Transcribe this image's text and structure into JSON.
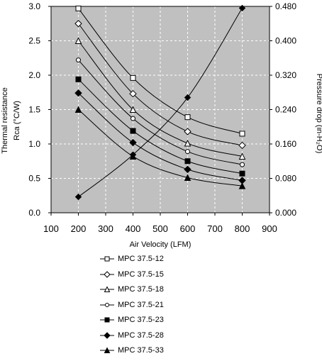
{
  "chart_data": {
    "type": "line",
    "xlabel": "Air Velocity (LFM)",
    "ylabel_left_line1": "Thermal resistance",
    "ylabel_left_line2": "Rca (°C/W)",
    "ylabel_right": "Pressure drop (in-H₂O)",
    "xlim": [
      100,
      900
    ],
    "x_ticks": [
      100,
      200,
      300,
      400,
      500,
      600,
      700,
      800,
      900
    ],
    "ylim_left": [
      0.0,
      3.0
    ],
    "y_ticks_left": [
      "0.0",
      "0.5",
      "1.0",
      "1.5",
      "2.0",
      "2.5",
      "3.0"
    ],
    "ylim_right": [
      0.0,
      0.48
    ],
    "y_ticks_right": [
      "0.000",
      "0.080",
      "0.160",
      "0.240",
      "0.320",
      "0.400",
      "0.480"
    ],
    "grid": true,
    "background_color": "#c0c0c0",
    "line_color": "#000000",
    "x": [
      200,
      400,
      600,
      800
    ],
    "series": [
      {
        "name": "MPC 37.5-12",
        "marker": "square-open",
        "values": [
          2.97,
          1.96,
          1.39,
          1.15
        ]
      },
      {
        "name": "MPC 37.5-15",
        "marker": "diamond-open",
        "values": [
          2.75,
          1.73,
          1.18,
          0.98
        ]
      },
      {
        "name": "MPC 37.5-18",
        "marker": "triangle-open",
        "values": [
          2.5,
          1.5,
          1.01,
          0.82
        ]
      },
      {
        "name": "MPC 37.5-21",
        "marker": "circle-open",
        "values": [
          2.22,
          1.37,
          0.89,
          0.7
        ]
      },
      {
        "name": "MPC 37.5-23",
        "marker": "square-filled",
        "values": [
          1.94,
          1.19,
          0.75,
          0.57
        ]
      },
      {
        "name": "MPC 37.5-28",
        "marker": "diamond-filled",
        "values": [
          1.74,
          1.02,
          0.63,
          0.47
        ]
      },
      {
        "name": "MPC 37.5-33",
        "marker": "triangle-filled",
        "values": [
          1.5,
          0.82,
          0.51,
          0.39
        ]
      }
    ],
    "pressure_drop": {
      "marker": "diamond-filled",
      "axis": "right",
      "values": [
        0.037,
        0.135,
        0.268,
        0.476
      ]
    }
  }
}
